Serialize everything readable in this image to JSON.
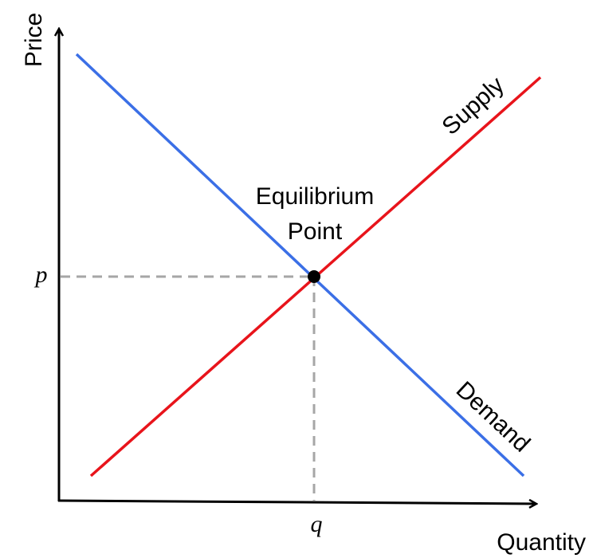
{
  "axes": {
    "y_label": "Price",
    "x_label": "Quantity"
  },
  "curves": {
    "supply": "Supply",
    "demand": "Demand"
  },
  "equilibrium": {
    "label_lines": [
      "Equilibrium",
      "Point"
    ],
    "price": "p",
    "quantity": "q"
  }
}
